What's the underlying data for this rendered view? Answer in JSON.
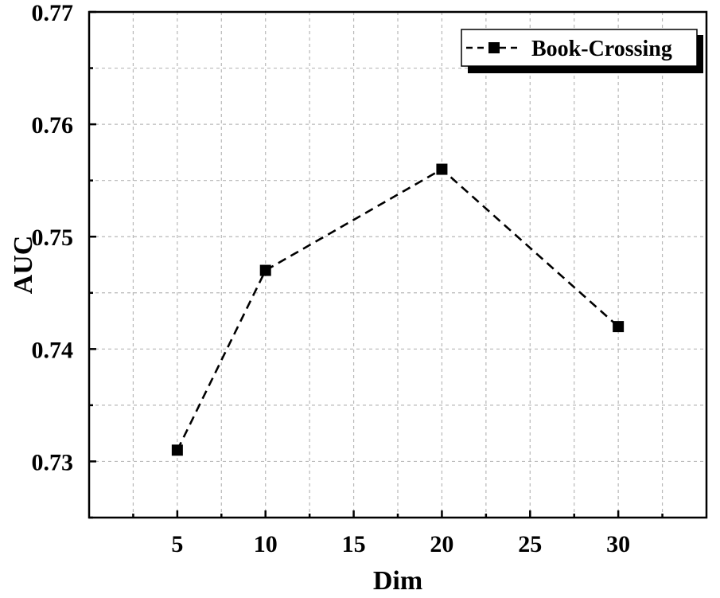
{
  "chart_data": {
    "type": "line",
    "xlabel": "Dim",
    "ylabel": "AUC",
    "xlim": [
      0,
      35
    ],
    "ylim": [
      0.725,
      0.77
    ],
    "x_ticks": [
      5,
      10,
      15,
      20,
      25,
      30
    ],
    "y_ticks": [
      "0.73",
      "0.74",
      "0.75",
      "0.76",
      "0.77"
    ],
    "grid": true,
    "legend_position": "top-right",
    "series": [
      {
        "name": "Book-Crossing",
        "marker": "square",
        "line_style": "dashed",
        "color": "#000000",
        "x": [
          5,
          10,
          20,
          30
        ],
        "y": [
          0.731,
          0.747,
          0.756,
          0.742
        ]
      }
    ]
  }
}
